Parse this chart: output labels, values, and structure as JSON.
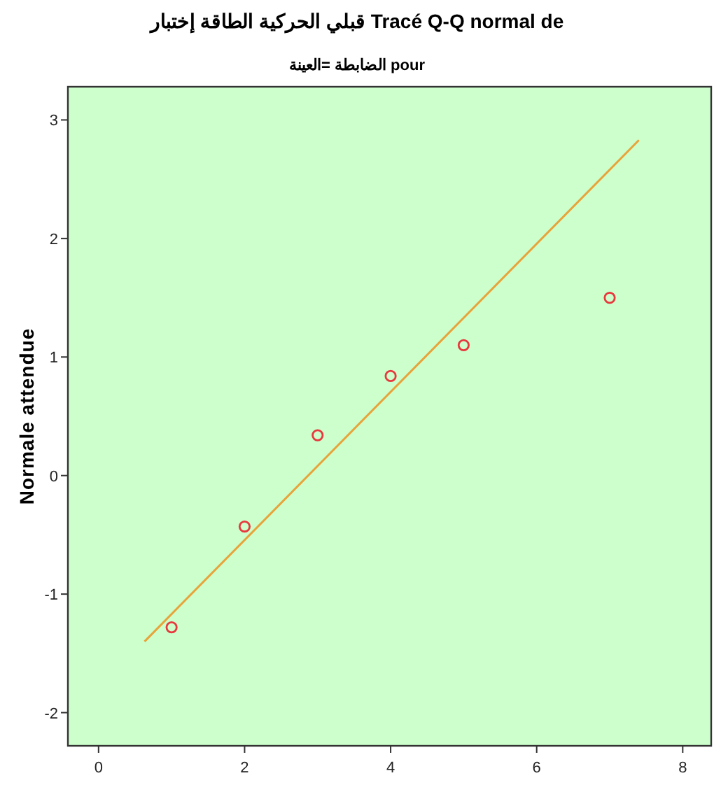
{
  "chart_data": {
    "type": "scatter",
    "title": "Tracé Q-Q normal de قبلي الحركية الطاقة إختبار",
    "subtitle": "pour الضابطة =العينة",
    "ylabel": "Normale attendue",
    "series": [
      {
        "marker": "circle",
        "color": "#e8383d",
        "x": [
          1,
          2,
          3,
          4,
          5,
          7
        ],
        "values": [
          -1.28,
          -0.43,
          0.34,
          0.84,
          1.1,
          1.5
        ]
      },
      {
        "type": "line",
        "color": "#e8a33a",
        "x": [
          0.63,
          7.4
        ],
        "values": [
          -1.4,
          2.83
        ]
      }
    ],
    "xlim": [
      -0.42,
      8.39
    ],
    "ylim": [
      -2.28,
      3.28
    ],
    "xticks": [
      0,
      2,
      4,
      6,
      8
    ],
    "yticks": [
      -2,
      -1,
      0,
      1,
      2,
      3
    ]
  }
}
